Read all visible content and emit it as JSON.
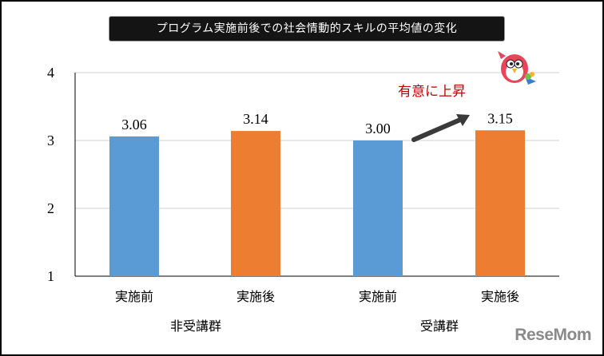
{
  "title": "プログラム実施前後での社会情動的スキルの平均値の変化",
  "chart_data": {
    "type": "bar",
    "title": "プログラム実施前後での社会情動的スキルの平均値の変化",
    "ylim": [
      1,
      4
    ],
    "yticks": [
      "1",
      "2",
      "3",
      "4"
    ],
    "grid": true,
    "bars": [
      {
        "label": "実施前",
        "group": "非受講群",
        "value": 3.06,
        "value_label": "3.06",
        "color": "#5b9bd5"
      },
      {
        "label": "実施後",
        "group": "非受講群",
        "value": 3.14,
        "value_label": "3.14",
        "color": "#ed7d31"
      },
      {
        "label": "実施前",
        "group": "受講群",
        "value": 3.0,
        "value_label": "3.00",
        "color": "#5b9bd5"
      },
      {
        "label": "実施後",
        "group": "受講群",
        "value": 3.15,
        "value_label": "3.15",
        "color": "#ed7d31"
      }
    ],
    "groups": [
      "非受講群",
      "受講群"
    ],
    "annotation": {
      "text": "有意に上昇",
      "color": "#c00000"
    }
  },
  "watermark": "ReseMom",
  "mascot_icon": "bird-mascot-icon",
  "colors": {
    "before": "#5b9bd5",
    "after": "#ed7d31",
    "arrow": "#3a3a3a"
  }
}
